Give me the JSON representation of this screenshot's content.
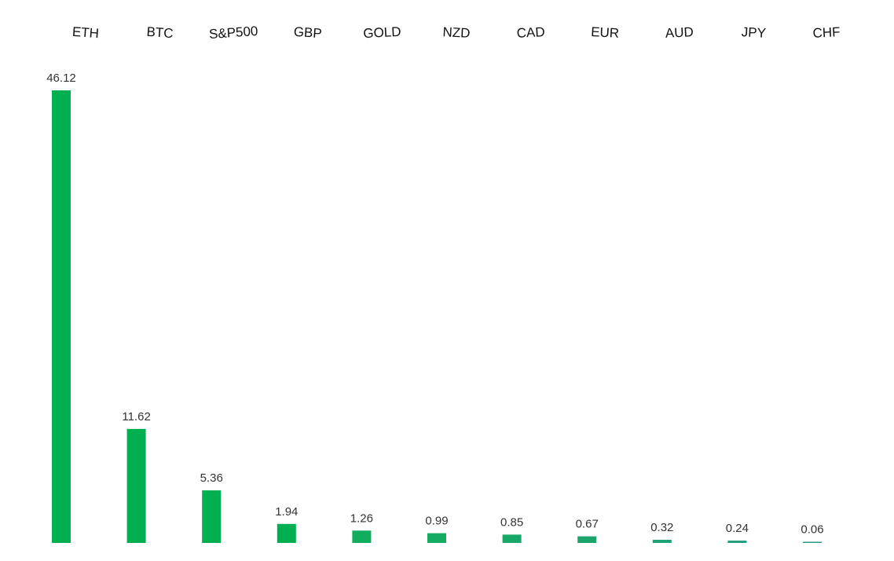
{
  "chart_data": {
    "type": "bar",
    "categories": [
      "ETH",
      "BTC",
      "S&P500",
      "GBP",
      "GOLD",
      "NZD",
      "CAD",
      "EUR",
      "AUD",
      "JPY",
      "CHF"
    ],
    "values": [
      46.12,
      11.62,
      5.36,
      1.94,
      1.26,
      0.99,
      0.85,
      0.67,
      0.32,
      0.24,
      0.06
    ],
    "value_labels": [
      "46.12",
      "11.62",
      "5.36",
      "1.94",
      "1.26",
      "0.99",
      "0.85",
      "0.67",
      "0.32",
      "0.24",
      "0.06"
    ],
    "bar_colors": [
      "#00b050",
      "#00b050",
      "#00b050",
      "#00b050",
      "#10ad5e",
      "#14ab62",
      "#18a867",
      "#1ba56c",
      "#1fa275",
      "#239f7e",
      "#289a88"
    ],
    "title": "",
    "xlabel": "",
    "ylabel": "",
    "ylim": [
      0,
      46.12
    ],
    "category_axis_position": "top",
    "grid": false,
    "legend": "none"
  }
}
